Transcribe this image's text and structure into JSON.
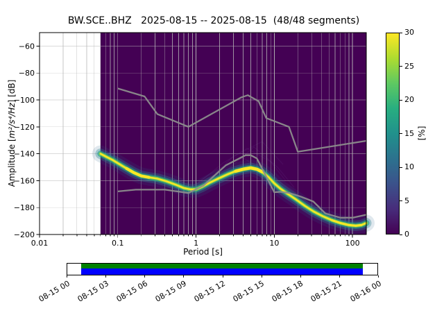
{
  "chart_data": {
    "type": "heatmap",
    "title": "BW.SCE..BHZ   2025-08-15 -- 2025-08-15  (48/48 segments)",
    "xlabel": "Period [s]",
    "ylabel": "Amplitude [m²/s⁴/Hz] [dB]",
    "ylabel_parts": {
      "prefix": "Amplitude [",
      "math": "m²/s⁴/Hz",
      "suffix": "] [dB]"
    },
    "xscale": "log",
    "xlim": [
      0.01,
      150
    ],
    "ylim": [
      -200,
      -50
    ],
    "xticks": [
      0.01,
      0.1,
      1,
      10,
      100
    ],
    "xtick_labels": [
      "0.01",
      "0.1",
      "1",
      "10",
      "100"
    ],
    "yticks": [
      -60,
      -80,
      -100,
      -120,
      -140,
      -160,
      -180,
      -200
    ],
    "ytick_labels": [
      "−60",
      "−80",
      "−100",
      "−120",
      "−140",
      "−160",
      "−180",
      "−200"
    ],
    "grid": true,
    "grid_color": "#b5b5b5",
    "background_color": "#440154",
    "data_region_start_period": 0.06,
    "colorbar": {
      "label": "[%]",
      "min": 0,
      "max": 30,
      "ticks": [
        0,
        5,
        10,
        15,
        20,
        25,
        30
      ],
      "tick_labels": [
        "0",
        "5",
        "10",
        "15",
        "20",
        "25",
        "30"
      ],
      "stops": [
        "#440154",
        "#472d7b",
        "#3b528b",
        "#2c728e",
        "#21918c",
        "#28ae80",
        "#5ec962",
        "#addc30",
        "#fde725"
      ]
    },
    "noise_models": {
      "color": "#8c8c8c",
      "high": [
        [
          0.1,
          -91.5
        ],
        [
          0.22,
          -97.4
        ],
        [
          0.32,
          -110.5
        ],
        [
          0.8,
          -120.0
        ],
        [
          3.8,
          -98.1
        ],
        [
          4.6,
          -96.5
        ],
        [
          6.3,
          -101.0
        ],
        [
          7.9,
          -113.5
        ],
        [
          15.4,
          -120.0
        ],
        [
          20.0,
          -138.5
        ],
        [
          150,
          -130.4
        ]
      ],
      "low": [
        [
          0.1,
          -168.0
        ],
        [
          0.17,
          -166.7
        ],
        [
          0.4,
          -166.7
        ],
        [
          0.8,
          -169.2
        ],
        [
          1.24,
          -163.7
        ],
        [
          2.4,
          -148.6
        ],
        [
          4.3,
          -141.1
        ],
        [
          5.0,
          -141.1
        ],
        [
          6.0,
          -143.5
        ],
        [
          10.0,
          -168.6
        ],
        [
          12.0,
          -168.3
        ],
        [
          15.6,
          -169.2
        ],
        [
          21.9,
          -171.9
        ],
        [
          31.6,
          -175.5
        ],
        [
          45.0,
          -184.4
        ],
        [
          70.0,
          -187.5
        ],
        [
          101.0,
          -187.5
        ],
        [
          150.0,
          -185.3
        ]
      ]
    },
    "psd_mode": [
      [
        0.06,
        -140
      ],
      [
        0.07,
        -142
      ],
      [
        0.085,
        -144.5
      ],
      [
        0.1,
        -147
      ],
      [
        0.13,
        -151
      ],
      [
        0.16,
        -154
      ],
      [
        0.2,
        -156.5
      ],
      [
        0.25,
        -157.5
      ],
      [
        0.32,
        -158.5
      ],
      [
        0.42,
        -160.5
      ],
      [
        0.55,
        -163
      ],
      [
        0.7,
        -165.5
      ],
      [
        0.85,
        -166.5
      ],
      [
        1.0,
        -166.5
      ],
      [
        1.2,
        -164.5
      ],
      [
        1.5,
        -161.5
      ],
      [
        2.0,
        -158
      ],
      [
        2.6,
        -155
      ],
      [
        3.2,
        -153
      ],
      [
        4.0,
        -151.5
      ],
      [
        5.0,
        -150.5
      ],
      [
        6.0,
        -151.5
      ],
      [
        7.0,
        -153.5
      ],
      [
        8.5,
        -157.5
      ],
      [
        10,
        -162
      ],
      [
        12,
        -166
      ],
      [
        15,
        -170
      ],
      [
        19,
        -174
      ],
      [
        25,
        -179
      ],
      [
        32,
        -183
      ],
      [
        42,
        -186.5
      ],
      [
        55,
        -189.5
      ],
      [
        70,
        -191.5
      ],
      [
        90,
        -193
      ],
      [
        110,
        -193.5
      ],
      [
        130,
        -193
      ],
      [
        150,
        -191.5
      ]
    ],
    "band_layers": [
      {
        "w": 24,
        "color": "#30678d",
        "op": 0.15
      },
      {
        "w": 15,
        "color": "#2b808e",
        "op": 0.35
      },
      {
        "w": 9,
        "color": "#21a585",
        "op": 0.6
      },
      {
        "w": 5,
        "color": "#70cf57",
        "op": 0.9
      },
      {
        "w": 2.4,
        "color": "#fde725",
        "op": 1.0
      }
    ],
    "hotspot_color": "#fde725",
    "hotspots": [
      {
        "from": 0.13,
        "to": 0.3,
        "w": 4
      },
      {
        "from": 2.8,
        "to": 7.0,
        "w": 4.5
      },
      {
        "from": 55,
        "to": 140,
        "w": 3
      }
    ],
    "outlier_color": "#8878b8",
    "outlier_opacity": 0.1,
    "outliers": [
      [
        [
          1.0,
          -163
        ],
        [
          2.2,
          -147
        ],
        [
          4.5,
          -136
        ],
        [
          9,
          -146
        ],
        [
          14,
          -160
        ]
      ],
      [
        [
          1.4,
          -160
        ],
        [
          3.0,
          -142
        ],
        [
          7,
          -131
        ],
        [
          13,
          -148
        ]
      ],
      [
        [
          0.9,
          -164
        ],
        [
          1.8,
          -152
        ],
        [
          4,
          -143
        ],
        [
          10,
          -158
        ],
        [
          20,
          -170
        ]
      ],
      [
        [
          2.5,
          -152
        ],
        [
          5.5,
          -135
        ],
        [
          11,
          -150
        ],
        [
          18,
          -165
        ]
      ]
    ]
  },
  "timeline": {
    "tick_labels": [
      "08-15 00",
      "08-15 03",
      "08-15 06",
      "08-15 09",
      "08-15 12",
      "08-15 15",
      "08-15 18",
      "08-15 21",
      "08-16 00"
    ],
    "coverage": {
      "start_frac": 0.045,
      "end_frac": 0.952,
      "top_color": "#008000",
      "top_frac": 0.42,
      "bottom_color": "#0000ff"
    }
  }
}
